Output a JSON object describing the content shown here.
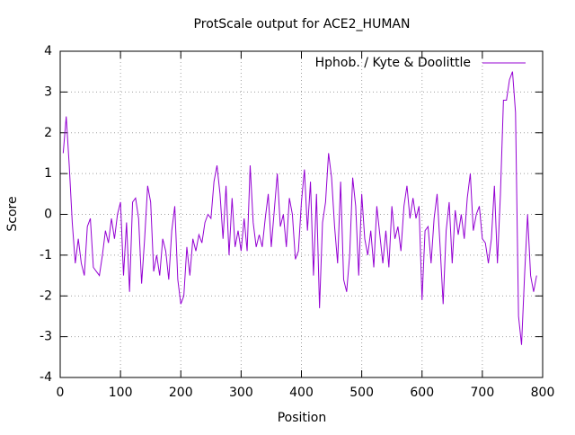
{
  "chart_data": {
    "type": "line",
    "title": "ProtScale output for ACE2_HUMAN",
    "x_label": "Position",
    "y_label": "Score",
    "x": [
      5,
      10,
      15,
      20,
      25,
      30,
      35,
      40,
      45,
      50,
      55,
      60,
      65,
      70,
      75,
      80,
      85,
      90,
      95,
      100,
      105,
      110,
      115,
      120,
      125,
      130,
      135,
      140,
      145,
      150,
      155,
      160,
      165,
      170,
      175,
      180,
      185,
      190,
      195,
      200,
      205,
      210,
      215,
      220,
      225,
      230,
      235,
      240,
      245,
      250,
      255,
      260,
      265,
      270,
      275,
      280,
      285,
      290,
      295,
      300,
      305,
      310,
      315,
      320,
      325,
      330,
      335,
      340,
      345,
      350,
      355,
      360,
      365,
      370,
      375,
      380,
      385,
      390,
      395,
      400,
      405,
      410,
      415,
      420,
      425,
      430,
      435,
      440,
      445,
      450,
      455,
      460,
      465,
      470,
      475,
      480,
      485,
      490,
      495,
      500,
      505,
      510,
      515,
      520,
      525,
      530,
      535,
      540,
      545,
      550,
      555,
      560,
      565,
      570,
      575,
      580,
      585,
      590,
      595,
      600,
      605,
      610,
      615,
      620,
      625,
      630,
      635,
      640,
      645,
      650,
      655,
      660,
      665,
      670,
      675,
      680,
      685,
      690,
      695,
      700,
      705,
      710,
      715,
      720,
      725,
      730,
      735,
      740,
      745,
      750,
      755,
      760,
      765,
      770,
      775,
      780,
      785,
      790
    ],
    "series": [
      {
        "name": "Hphob. / Kyte & Doolittle",
        "color": "#9400d3",
        "values": [
          1.5,
          2.4,
          1.2,
          -0.2,
          -1.2,
          -0.6,
          -1.2,
          -1.5,
          -0.3,
          -0.1,
          -1.3,
          -1.4,
          -1.5,
          -1.0,
          -0.4,
          -0.7,
          -0.1,
          -0.6,
          0.0,
          0.3,
          -1.5,
          -0.2,
          -1.9,
          0.3,
          0.4,
          -0.1,
          -1.7,
          -0.6,
          0.7,
          0.3,
          -1.4,
          -1.0,
          -1.5,
          -0.6,
          -0.9,
          -1.6,
          -0.4,
          0.2,
          -1.6,
          -2.2,
          -2.0,
          -0.8,
          -1.5,
          -0.6,
          -0.9,
          -0.5,
          -0.7,
          -0.2,
          0.0,
          -0.1,
          0.8,
          1.2,
          0.5,
          -0.6,
          0.7,
          -1.0,
          0.4,
          -0.8,
          -0.4,
          -0.9,
          -0.1,
          -0.9,
          1.2,
          -0.2,
          -0.8,
          -0.5,
          -0.8,
          -0.1,
          0.5,
          -0.8,
          0.1,
          1.0,
          -0.3,
          0.0,
          -0.8,
          0.4,
          0.0,
          -1.1,
          -0.9,
          0.3,
          1.1,
          -0.4,
          0.8,
          -1.5,
          0.5,
          -2.3,
          -0.2,
          0.3,
          1.5,
          0.9,
          -0.3,
          -1.2,
          0.8,
          -1.6,
          -1.9,
          -1.0,
          0.9,
          0.2,
          -1.5,
          0.5,
          -0.6,
          -1.0,
          -0.4,
          -1.3,
          0.2,
          -0.5,
          -1.2,
          -0.4,
          -1.3,
          0.2,
          -0.6,
          -0.3,
          -0.9,
          0.2,
          0.7,
          -0.1,
          0.4,
          -0.1,
          0.2,
          -2.1,
          -0.4,
          -0.3,
          -1.2,
          -0.1,
          0.5,
          -0.8,
          -2.2,
          -0.4,
          0.3,
          -1.2,
          0.1,
          -0.5,
          0.0,
          -0.6,
          0.4,
          1.0,
          -0.4,
          0.0,
          0.2,
          -0.6,
          -0.7,
          -1.2,
          -0.6,
          0.7,
          -1.2,
          0.5,
          2.8,
          2.8,
          3.3,
          3.5,
          2.5,
          -2.5,
          -3.2,
          -1.5,
          0.0,
          -1.5,
          -1.9,
          -1.5
        ]
      }
    ],
    "xlim": [
      0,
      800
    ],
    "xticks": [
      0,
      100,
      200,
      300,
      400,
      500,
      600,
      700,
      800
    ],
    "ylim": [
      -4,
      4
    ],
    "yticks": [
      -4,
      -3,
      -2,
      -1,
      0,
      1,
      2,
      3,
      4
    ],
    "grid": true,
    "legend": "top-right"
  }
}
